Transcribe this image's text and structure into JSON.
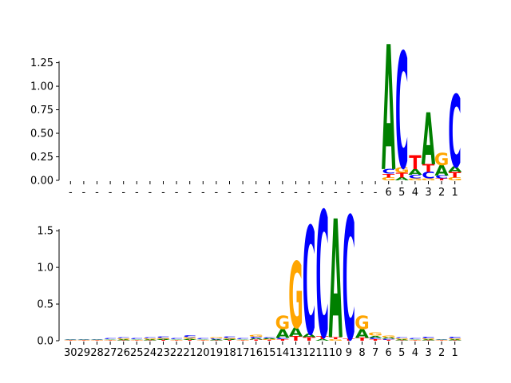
{
  "chart_data": [
    {
      "type": "sequence-logo",
      "title": "",
      "xlabel": "",
      "ylabel": "",
      "ylim": [
        0,
        1.45
      ],
      "yticks": [
        "0.00",
        "0.25",
        "0.50",
        "0.75",
        "1.00",
        "1.25"
      ],
      "ytick_values": [
        0,
        0.25,
        0.5,
        0.75,
        1.0,
        1.25
      ],
      "categories": [
        "-",
        "-",
        "-",
        "-",
        "-",
        "-",
        "-",
        "-",
        "-",
        "-",
        "-",
        "-",
        "-",
        "-",
        "-",
        "-",
        "-",
        "-",
        "-",
        "-",
        "-",
        "-",
        "-",
        "-",
        "6",
        "5",
        "4",
        "3",
        "2",
        "1"
      ],
      "columns": [
        [],
        [],
        [],
        [],
        [],
        [],
        [],
        [],
        [],
        [],
        [],
        [],
        [],
        [],
        [],
        [],
        [],
        [],
        [],
        [],
        [],
        [],
        [],
        [],
        [
          {
            "l": "G",
            "v": 0.03
          },
          {
            "l": "T",
            "v": 0.04
          },
          {
            "l": "C",
            "v": 0.05
          },
          {
            "l": "A",
            "v": 1.33
          }
        ],
        [
          {
            "l": "A",
            "v": 0.03
          },
          {
            "l": "T",
            "v": 0.05
          },
          {
            "l": "G",
            "v": 0.06
          },
          {
            "l": "C",
            "v": 1.23
          }
        ],
        [
          {
            "l": "G",
            "v": 0.02
          },
          {
            "l": "C",
            "v": 0.04
          },
          {
            "l": "A",
            "v": 0.06
          },
          {
            "l": "T",
            "v": 0.15
          }
        ],
        [
          {
            "l": "G",
            "v": 0.02
          },
          {
            "l": "C",
            "v": 0.07
          },
          {
            "l": "T",
            "v": 0.08
          },
          {
            "l": "A",
            "v": 0.55
          }
        ],
        [
          {
            "l": "T",
            "v": 0.02
          },
          {
            "l": "C",
            "v": 0.03
          },
          {
            "l": "A",
            "v": 0.11
          },
          {
            "l": "G",
            "v": 0.13
          }
        ],
        [
          {
            "l": "G",
            "v": 0.03
          },
          {
            "l": "T",
            "v": 0.06
          },
          {
            "l": "A",
            "v": 0.06
          },
          {
            "l": "C",
            "v": 0.77
          }
        ]
      ]
    },
    {
      "type": "sequence-logo",
      "title": "",
      "xlabel": "",
      "ylabel": "",
      "ylim": [
        0,
        1.85
      ],
      "yticks": [
        "0.0",
        "0.5",
        "1.0",
        "1.5"
      ],
      "ytick_values": [
        0,
        0.5,
        1.0,
        1.5
      ],
      "categories": [
        "30",
        "29",
        "28",
        "27",
        "26",
        "25",
        "24",
        "23",
        "22",
        "21",
        "20",
        "19",
        "18",
        "17",
        "16",
        "15",
        "14",
        "13",
        "12",
        "11",
        "10",
        "9",
        "8",
        "7",
        "6",
        "5",
        "4",
        "3",
        "2",
        "1"
      ],
      "columns": [
        [
          {
            "l": "T",
            "v": 0.005
          },
          {
            "l": "G",
            "v": 0.005
          },
          {
            "l": "C",
            "v": 0.005
          },
          {
            "l": "A",
            "v": 0.005
          }
        ],
        [
          {
            "l": "T",
            "v": 0.005
          },
          {
            "l": "G",
            "v": 0.005
          },
          {
            "l": "C",
            "v": 0.005
          },
          {
            "l": "A",
            "v": 0.005
          }
        ],
        [
          {
            "l": "T",
            "v": 0.005
          },
          {
            "l": "G",
            "v": 0.005
          },
          {
            "l": "C",
            "v": 0.005
          },
          {
            "l": "A",
            "v": 0.005
          }
        ],
        [
          {
            "l": "T",
            "v": 0.006
          },
          {
            "l": "G",
            "v": 0.006
          },
          {
            "l": "A",
            "v": 0.008
          },
          {
            "l": "C",
            "v": 0.01
          }
        ],
        [
          {
            "l": "T",
            "v": 0.008
          },
          {
            "l": "A",
            "v": 0.01
          },
          {
            "l": "G",
            "v": 0.012
          },
          {
            "l": "C",
            "v": 0.015
          }
        ],
        [
          {
            "l": "T",
            "v": 0.006
          },
          {
            "l": "G",
            "v": 0.006
          },
          {
            "l": "A",
            "v": 0.008
          },
          {
            "l": "C",
            "v": 0.01
          }
        ],
        [
          {
            "l": "T",
            "v": 0.008
          },
          {
            "l": "A",
            "v": 0.01
          },
          {
            "l": "G",
            "v": 0.012
          },
          {
            "l": "C",
            "v": 0.015
          }
        ],
        [
          {
            "l": "T",
            "v": 0.01
          },
          {
            "l": "A",
            "v": 0.012
          },
          {
            "l": "G",
            "v": 0.015
          },
          {
            "l": "C",
            "v": 0.02
          }
        ],
        [
          {
            "l": "T",
            "v": 0.006
          },
          {
            "l": "G",
            "v": 0.006
          },
          {
            "l": "A",
            "v": 0.008
          },
          {
            "l": "C",
            "v": 0.01
          }
        ],
        [
          {
            "l": "T",
            "v": 0.012
          },
          {
            "l": "A",
            "v": 0.015
          },
          {
            "l": "G",
            "v": 0.02
          },
          {
            "l": "C",
            "v": 0.03
          }
        ],
        [
          {
            "l": "T",
            "v": 0.006
          },
          {
            "l": "G",
            "v": 0.006
          },
          {
            "l": "A",
            "v": 0.008
          },
          {
            "l": "C",
            "v": 0.01
          }
        ],
        [
          {
            "l": "T",
            "v": 0.008
          },
          {
            "l": "A",
            "v": 0.01
          },
          {
            "l": "C",
            "v": 0.012
          },
          {
            "l": "G",
            "v": 0.015
          }
        ],
        [
          {
            "l": "T",
            "v": 0.01
          },
          {
            "l": "A",
            "v": 0.012
          },
          {
            "l": "G",
            "v": 0.015
          },
          {
            "l": "C",
            "v": 0.02
          }
        ],
        [
          {
            "l": "T",
            "v": 0.006
          },
          {
            "l": "G",
            "v": 0.006
          },
          {
            "l": "A",
            "v": 0.008
          },
          {
            "l": "C",
            "v": 0.01
          }
        ],
        [
          {
            "l": "T",
            "v": 0.015
          },
          {
            "l": "A",
            "v": 0.02
          },
          {
            "l": "C",
            "v": 0.02
          },
          {
            "l": "G",
            "v": 0.025
          }
        ],
        [
          {
            "l": "T",
            "v": 0.01
          },
          {
            "l": "G",
            "v": 0.01
          },
          {
            "l": "A",
            "v": 0.012
          },
          {
            "l": "C",
            "v": 0.015
          }
        ],
        [
          {
            "l": "T",
            "v": 0.02
          },
          {
            "l": "C",
            "v": 0.02
          },
          {
            "l": "A",
            "v": 0.12
          },
          {
            "l": "G",
            "v": 0.18
          }
        ],
        [
          {
            "l": "T",
            "v": 0.06
          },
          {
            "l": "A",
            "v": 0.12
          },
          {
            "l": "G",
            "v": 0.9
          }
        ],
        [
          {
            "l": "T",
            "v": 0.05
          },
          {
            "l": "A",
            "v": 0.05
          },
          {
            "l": "C",
            "v": 1.47
          }
        ],
        [
          {
            "l": "A",
            "v": 0.02
          },
          {
            "l": "T",
            "v": 0.04
          },
          {
            "l": "C",
            "v": 1.72
          }
        ],
        [
          {
            "l": "G",
            "v": 0.02
          },
          {
            "l": "T",
            "v": 0.03
          },
          {
            "l": "A",
            "v": 1.62
          }
        ],
        [
          {
            "l": "T",
            "v": 0.03
          },
          {
            "l": "C",
            "v": 1.68
          }
        ],
        [
          {
            "l": "T",
            "v": 0.04
          },
          {
            "l": "A",
            "v": 0.12
          },
          {
            "l": "G",
            "v": 0.18
          }
        ],
        [
          {
            "l": "T",
            "v": 0.02
          },
          {
            "l": "C",
            "v": 0.02
          },
          {
            "l": "A",
            "v": 0.03
          },
          {
            "l": "G",
            "v": 0.04
          }
        ],
        [
          {
            "l": "T",
            "v": 0.01
          },
          {
            "l": "C",
            "v": 0.015
          },
          {
            "l": "A",
            "v": 0.02
          },
          {
            "l": "G",
            "v": 0.025
          }
        ],
        [
          {
            "l": "T",
            "v": 0.008
          },
          {
            "l": "A",
            "v": 0.01
          },
          {
            "l": "G",
            "v": 0.012
          },
          {
            "l": "C",
            "v": 0.015
          }
        ],
        [
          {
            "l": "T",
            "v": 0.006
          },
          {
            "l": "G",
            "v": 0.006
          },
          {
            "l": "A",
            "v": 0.008
          },
          {
            "l": "C",
            "v": 0.01
          }
        ],
        [
          {
            "l": "T",
            "v": 0.008
          },
          {
            "l": "A",
            "v": 0.01
          },
          {
            "l": "G",
            "v": 0.012
          },
          {
            "l": "C",
            "v": 0.02
          }
        ],
        [
          {
            "l": "T",
            "v": 0.005
          },
          {
            "l": "G",
            "v": 0.005
          },
          {
            "l": "C",
            "v": 0.005
          },
          {
            "l": "A",
            "v": 0.005
          }
        ],
        [
          {
            "l": "T",
            "v": 0.008
          },
          {
            "l": "A",
            "v": 0.01
          },
          {
            "l": "G",
            "v": 0.012
          },
          {
            "l": "C",
            "v": 0.02
          }
        ]
      ]
    }
  ],
  "colors": {
    "A": "#008000",
    "C": "#0000ff",
    "G": "#ffa500",
    "T": "#ff0000"
  }
}
